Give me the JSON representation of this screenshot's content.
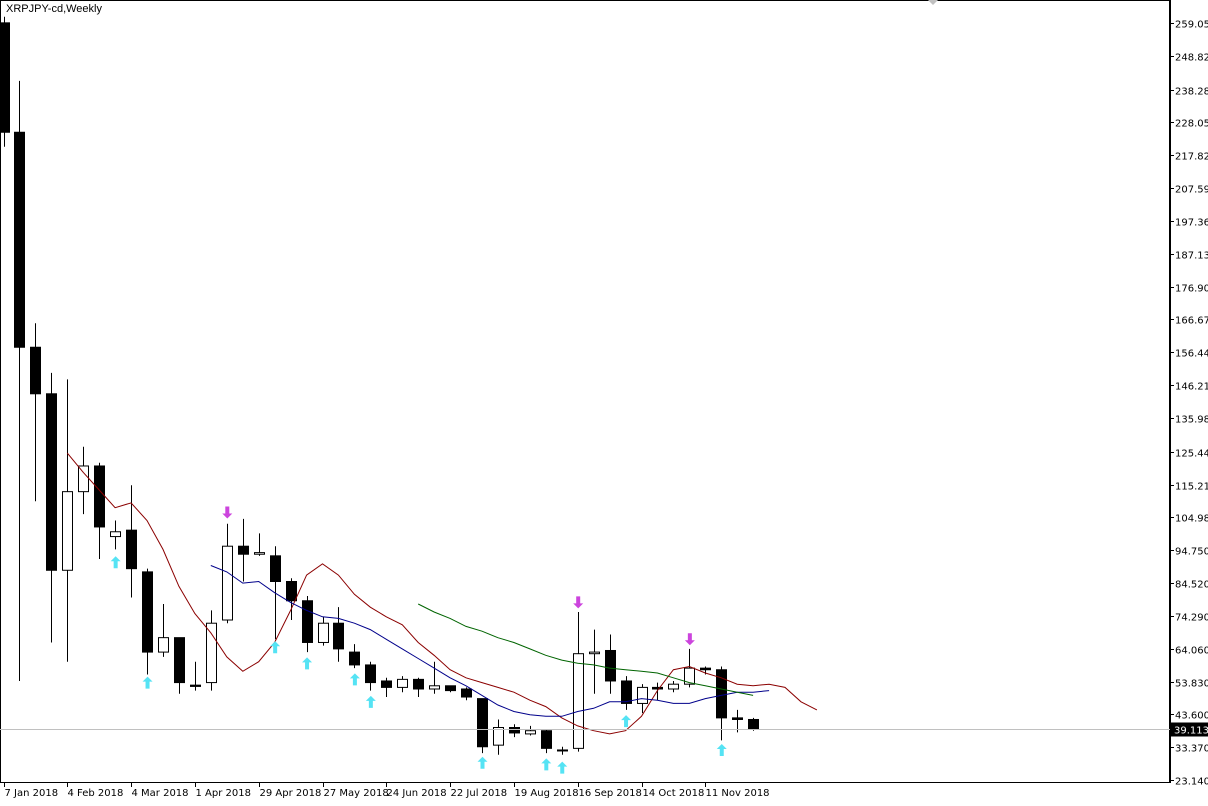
{
  "window": {
    "title": "XRPJPY-cd,Weekly"
  },
  "chart_data": {
    "type": "candlestick",
    "title": "XRPJPY-cd,Weekly",
    "ylim": [
      23.14,
      264
    ],
    "yticks": [
      259.05,
      248.82,
      238.28,
      228.05,
      217.82,
      207.59,
      197.36,
      187.13,
      176.9,
      166.67,
      156.44,
      146.21,
      135.98,
      125.44,
      115.21,
      104.98,
      94.75,
      84.52,
      74.29,
      64.06,
      53.83,
      43.6,
      33.37,
      23.14
    ],
    "ytick_labels": [
      "259.050",
      "248.820",
      "238.280",
      "228.050",
      "217.820",
      "207.590",
      "197.360",
      "187.130",
      "176.900",
      "166.670",
      "156.440",
      "146.210",
      "135.980",
      "125.440",
      "115.210",
      "104.980",
      "94.750",
      "84.520",
      "74.290",
      "64.060",
      "53.830",
      "43.600",
      "33.370",
      "23.140"
    ],
    "xtick_labels": [
      {
        "bar": 0,
        "label": "7 Jan 2018"
      },
      {
        "bar": 4,
        "label": "4 Feb 2018"
      },
      {
        "bar": 8,
        "label": "4 Mar 2018"
      },
      {
        "bar": 12,
        "label": "1 Apr 2018"
      },
      {
        "bar": 16,
        "label": "29 Apr 2018"
      },
      {
        "bar": 20,
        "label": "27 May 2018"
      },
      {
        "bar": 24,
        "label": "24 Jun 2018"
      },
      {
        "bar": 28,
        "label": "22 Jul 2018"
      },
      {
        "bar": 32,
        "label": "19 Aug 2018"
      },
      {
        "bar": 36,
        "label": "16 Sep 2018"
      },
      {
        "bar": 40,
        "label": "14 Oct 2018"
      },
      {
        "bar": 44,
        "label": "11 Nov 2018"
      }
    ],
    "current_price": 39.113,
    "current_price_label": "39.113",
    "candles": [
      {
        "o": 259.1,
        "h": 261.0,
        "l": 220.5,
        "c": 225.0
      },
      {
        "o": 225.0,
        "h": 241.0,
        "l": 54.0,
        "c": 158.0
      },
      {
        "o": 158.0,
        "h": 165.5,
        "l": 110.0,
        "c": 143.5
      },
      {
        "o": 143.5,
        "h": 150.0,
        "l": 66.0,
        "c": 88.5
      },
      {
        "o": 88.5,
        "h": 148.0,
        "l": 60.0,
        "c": 113.0
      },
      {
        "o": 113.0,
        "h": 127.0,
        "l": 106.0,
        "c": 121.0
      },
      {
        "o": 121.0,
        "h": 122.0,
        "l": 92.0,
        "c": 102.0
      },
      {
        "o": 99.0,
        "h": 104.0,
        "l": 95.0,
        "c": 100.5
      },
      {
        "o": 101.0,
        "h": 115.0,
        "l": 80.0,
        "c": 89.0
      },
      {
        "o": 88.0,
        "h": 89.0,
        "l": 56.0,
        "c": 63.0
      },
      {
        "o": 63.0,
        "h": 78.0,
        "l": 61.5,
        "c": 67.5
      },
      {
        "o": 67.5,
        "h": 67.5,
        "l": 50.0,
        "c": 53.5
      },
      {
        "o": 52.7,
        "h": 60.0,
        "l": 51.0,
        "c": 52.3
      },
      {
        "o": 53.5,
        "h": 76.0,
        "l": 51.0,
        "c": 72.0
      },
      {
        "o": 73.0,
        "h": 103.0,
        "l": 72.0,
        "c": 96.0
      },
      {
        "o": 96.0,
        "h": 104.5,
        "l": 85.0,
        "c": 93.5
      },
      {
        "o": 93.5,
        "h": 100.0,
        "l": 93.0,
        "c": 94.0
      },
      {
        "o": 93.0,
        "h": 96.0,
        "l": 67.0,
        "c": 85.0
      },
      {
        "o": 85.0,
        "h": 86.0,
        "l": 73.0,
        "c": 79.0
      },
      {
        "o": 79.0,
        "h": 80.5,
        "l": 63.0,
        "c": 66.0
      },
      {
        "o": 66.0,
        "h": 74.0,
        "l": 65.0,
        "c": 72.0
      },
      {
        "o": 72.0,
        "h": 77.0,
        "l": 60.0,
        "c": 64.0
      },
      {
        "o": 63.0,
        "h": 65.5,
        "l": 58.0,
        "c": 59.0
      },
      {
        "o": 59.0,
        "h": 60.0,
        "l": 51.0,
        "c": 53.5
      },
      {
        "o": 54.0,
        "h": 55.0,
        "l": 49.0,
        "c": 52.0
      },
      {
        "o": 52.0,
        "h": 55.5,
        "l": 50.5,
        "c": 54.5
      },
      {
        "o": 54.5,
        "h": 55.0,
        "l": 49.0,
        "c": 51.5
      },
      {
        "o": 51.5,
        "h": 60.0,
        "l": 50.0,
        "c": 52.5
      },
      {
        "o": 52.5,
        "h": 52.5,
        "l": 50.5,
        "c": 51.0
      },
      {
        "o": 51.5,
        "h": 52.0,
        "l": 48.0,
        "c": 49.0
      },
      {
        "o": 48.5,
        "h": 48.5,
        "l": 31.5,
        "c": 33.5
      },
      {
        "o": 34.0,
        "h": 42.0,
        "l": 31.0,
        "c": 39.5
      },
      {
        "o": 39.5,
        "h": 40.5,
        "l": 36.5,
        "c": 37.8
      },
      {
        "o": 37.5,
        "h": 40.0,
        "l": 37.0,
        "c": 38.5
      },
      {
        "o": 38.5,
        "h": 39.0,
        "l": 31.5,
        "c": 33.0
      },
      {
        "o": 32.2,
        "h": 33.5,
        "l": 31.0,
        "c": 32.5
      },
      {
        "o": 33.0,
        "h": 75.5,
        "l": 32.0,
        "c": 62.5
      },
      {
        "o": 62.5,
        "h": 70.0,
        "l": 50.0,
        "c": 63.0
      },
      {
        "o": 63.5,
        "h": 68.5,
        "l": 50.0,
        "c": 54.0
      },
      {
        "o": 54.0,
        "h": 55.5,
        "l": 45.0,
        "c": 47.0
      },
      {
        "o": 47.0,
        "h": 53.0,
        "l": 44.0,
        "c": 52.0
      },
      {
        "o": 52.0,
        "h": 53.5,
        "l": 48.0,
        "c": 51.5
      },
      {
        "o": 51.5,
        "h": 54.0,
        "l": 50.5,
        "c": 53.0
      },
      {
        "o": 53.0,
        "h": 64.0,
        "l": 52.0,
        "c": 58.0
      },
      {
        "o": 58.0,
        "h": 58.5,
        "l": 56.0,
        "c": 57.5
      },
      {
        "o": 57.5,
        "h": 58.5,
        "l": 35.5,
        "c": 42.5
      },
      {
        "o": 42.5,
        "h": 45.0,
        "l": 38.0,
        "c": 42.0
      },
      {
        "o": 42.0,
        "h": 42.5,
        "l": 38.5,
        "c": 39.113
      }
    ],
    "series": [
      {
        "color": "#8b0000",
        "start_bar": 4,
        "values": [
          125.0,
          119.0,
          113.5,
          108.0,
          109.5,
          104.0,
          95.0,
          83.5,
          75.0,
          69.0,
          61.5,
          57.0,
          60.0,
          66.0,
          76.0,
          87.0,
          90.5,
          87.0,
          81.0,
          77.0,
          74.0,
          71.5,
          66.0,
          62.0,
          57.5,
          55.0,
          53.5,
          52.0,
          50.5,
          48.0,
          46.0,
          42.5,
          40.0,
          38.5,
          37.5,
          38.5,
          43.0,
          51.0,
          57.5,
          58.5,
          56.5,
          55.0,
          53.0,
          52.5,
          53.0,
          52.0,
          47.5,
          45.0
        ]
      },
      {
        "color": "#00008b",
        "start_bar": 13,
        "values": [
          90.0,
          88.0,
          84.5,
          85.0,
          81.5,
          78.5,
          76.0,
          74.0,
          73.5,
          72.0,
          70.0,
          67.0,
          64.0,
          61.0,
          58.0,
          55.0,
          52.5,
          49.5,
          46.5,
          44.5,
          43.5,
          43.0,
          43.0,
          44.5,
          45.5,
          47.5,
          47.5,
          48.5,
          48.0,
          47.0,
          47.0,
          48.5,
          49.5,
          50.5,
          50.5,
          51.0
        ]
      },
      {
        "color": "#006400",
        "start_bar": 26,
        "values": [
          78.0,
          75.5,
          73.5,
          71.0,
          69.5,
          67.5,
          66.0,
          64.0,
          62.0,
          60.5,
          59.5,
          59.0,
          58.0,
          57.5,
          57.0,
          56.5,
          55.0,
          53.5,
          52.5,
          51.5,
          50.5,
          49.5
        ]
      }
    ],
    "arrows": [
      {
        "bar": 7,
        "dir": "up",
        "price": 91.0,
        "color": "#55e3f4"
      },
      {
        "bar": 9,
        "dir": "up",
        "price": 53.5,
        "color": "#55e3f4"
      },
      {
        "bar": 14,
        "dir": "down",
        "price": 106.5,
        "color": "#cc44dd"
      },
      {
        "bar": 17,
        "dir": "up",
        "price": 64.5,
        "color": "#55e3f4"
      },
      {
        "bar": 19,
        "dir": "up",
        "price": 59.5,
        "color": "#55e3f4"
      },
      {
        "bar": 22,
        "dir": "up",
        "price": 54.5,
        "color": "#55e3f4"
      },
      {
        "bar": 23,
        "dir": "up",
        "price": 47.5,
        "color": "#55e3f4"
      },
      {
        "bar": 30,
        "dir": "up",
        "price": 28.5,
        "color": "#55e3f4"
      },
      {
        "bar": 34,
        "dir": "up",
        "price": 28.0,
        "color": "#55e3f4"
      },
      {
        "bar": 35,
        "dir": "up",
        "price": 27.0,
        "color": "#55e3f4"
      },
      {
        "bar": 36,
        "dir": "down",
        "price": 78.5,
        "color": "#cc44dd"
      },
      {
        "bar": 39,
        "dir": "up",
        "price": 41.5,
        "color": "#55e3f4"
      },
      {
        "bar": 43,
        "dir": "down",
        "price": 67.0,
        "color": "#cc44dd"
      },
      {
        "bar": 45,
        "dir": "up",
        "price": 32.5,
        "color": "#55e3f4"
      }
    ]
  }
}
